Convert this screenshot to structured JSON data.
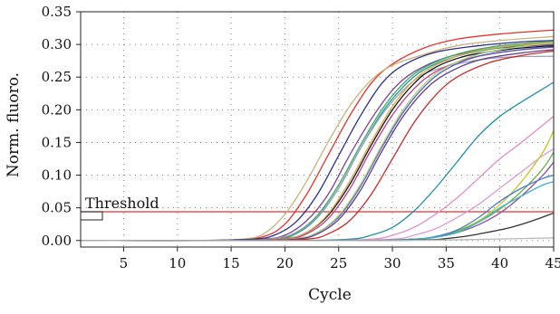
{
  "chart_data": {
    "type": "line",
    "xlabel": "Cycle",
    "ylabel": "Norm. fluoro.",
    "xlim": [
      1,
      45
    ],
    "ylim": [
      -0.01,
      0.35
    ],
    "x_ticks": [
      5,
      10,
      15,
      20,
      25,
      30,
      35,
      40,
      45
    ],
    "x_tick_labels": [
      "5",
      "10",
      "15",
      "20",
      "25",
      "30",
      "35",
      "40",
      "45"
    ],
    "y_ticks": [
      0.0,
      0.05,
      0.1,
      0.15,
      0.2,
      0.25,
      0.3,
      0.35
    ],
    "y_tick_labels": [
      "0.00",
      "0.05",
      "0.10",
      "0.15",
      "0.20",
      "0.25",
      "0.30",
      "0.35"
    ],
    "grid": "dotted",
    "threshold": {
      "label": "Threshold",
      "value": 0.044,
      "color": "#e8322a"
    },
    "series": [
      {
        "color": "#e8322a",
        "values": [
          [
            1,
            0.0
          ],
          [
            10,
            0.0
          ],
          [
            15,
            0.001
          ],
          [
            18,
            0.006
          ],
          [
            20,
            0.025
          ],
          [
            22,
            0.07
          ],
          [
            24,
            0.13
          ],
          [
            26,
            0.19
          ],
          [
            28,
            0.24
          ],
          [
            30,
            0.27
          ],
          [
            33,
            0.295
          ],
          [
            36,
            0.308
          ],
          [
            40,
            0.316
          ],
          [
            45,
            0.322
          ]
        ]
      },
      {
        "color": "#c8b27a",
        "values": [
          [
            1,
            0.0
          ],
          [
            12,
            0.0
          ],
          [
            16,
            0.002
          ],
          [
            18,
            0.01
          ],
          [
            20,
            0.04
          ],
          [
            22,
            0.09
          ],
          [
            24,
            0.15
          ],
          [
            26,
            0.205
          ],
          [
            28,
            0.245
          ],
          [
            30,
            0.268
          ],
          [
            33,
            0.285
          ],
          [
            36,
            0.298
          ],
          [
            40,
            0.306
          ],
          [
            45,
            0.312
          ]
        ]
      },
      {
        "color": "#2b2f8f",
        "values": [
          [
            1,
            0.0
          ],
          [
            12,
            0.0
          ],
          [
            17,
            0.002
          ],
          [
            19,
            0.008
          ],
          [
            21,
            0.028
          ],
          [
            23,
            0.07
          ],
          [
            25,
            0.13
          ],
          [
            27,
            0.19
          ],
          [
            29,
            0.24
          ],
          [
            31,
            0.268
          ],
          [
            34,
            0.288
          ],
          [
            38,
            0.298
          ],
          [
            42,
            0.304
          ],
          [
            45,
            0.306
          ]
        ]
      },
      {
        "color": "#7e3f98",
        "values": [
          [
            1,
            0.0
          ],
          [
            14,
            0.0
          ],
          [
            18,
            0.002
          ],
          [
            20,
            0.008
          ],
          [
            22,
            0.03
          ],
          [
            24,
            0.07
          ],
          [
            26,
            0.13
          ],
          [
            28,
            0.185
          ],
          [
            30,
            0.23
          ],
          [
            32,
            0.258
          ],
          [
            35,
            0.28
          ],
          [
            39,
            0.293
          ],
          [
            45,
            0.3
          ]
        ]
      },
      {
        "color": "#1e9a8a",
        "values": [
          [
            1,
            0.0
          ],
          [
            14,
            0.0
          ],
          [
            19,
            0.002
          ],
          [
            21,
            0.01
          ],
          [
            23,
            0.035
          ],
          [
            25,
            0.08
          ],
          [
            27,
            0.14
          ],
          [
            29,
            0.195
          ],
          [
            31,
            0.235
          ],
          [
            33,
            0.262
          ],
          [
            36,
            0.282
          ],
          [
            40,
            0.295
          ],
          [
            45,
            0.302
          ]
        ]
      },
      {
        "color": "#3aa66a",
        "values": [
          [
            1,
            0.0
          ],
          [
            15,
            0.0
          ],
          [
            19,
            0.003
          ],
          [
            21,
            0.012
          ],
          [
            23,
            0.038
          ],
          [
            25,
            0.085
          ],
          [
            27,
            0.145
          ],
          [
            29,
            0.2
          ],
          [
            31,
            0.24
          ],
          [
            33,
            0.265
          ],
          [
            36,
            0.285
          ],
          [
            40,
            0.298
          ],
          [
            45,
            0.305
          ]
        ]
      },
      {
        "color": "#9aa0b8",
        "values": [
          [
            1,
            0.0
          ],
          [
            15,
            0.0
          ],
          [
            19,
            0.003
          ],
          [
            21,
            0.012
          ],
          [
            23,
            0.036
          ],
          [
            25,
            0.08
          ],
          [
            27,
            0.14
          ],
          [
            29,
            0.192
          ],
          [
            31,
            0.23
          ],
          [
            33,
            0.255
          ],
          [
            36,
            0.27
          ],
          [
            40,
            0.28
          ],
          [
            45,
            0.282
          ]
        ]
      },
      {
        "color": "#111111",
        "values": [
          [
            1,
            0.0
          ],
          [
            15,
            0.0
          ],
          [
            20,
            0.003
          ],
          [
            22,
            0.012
          ],
          [
            24,
            0.038
          ],
          [
            26,
            0.085
          ],
          [
            28,
            0.145
          ],
          [
            30,
            0.2
          ],
          [
            32,
            0.24
          ],
          [
            34,
            0.265
          ],
          [
            37,
            0.283
          ],
          [
            41,
            0.293
          ],
          [
            45,
            0.298
          ]
        ]
      },
      {
        "color": "#d9a84a",
        "values": [
          [
            1,
            0.0
          ],
          [
            15,
            0.0
          ],
          [
            20,
            0.003
          ],
          [
            22,
            0.012
          ],
          [
            24,
            0.04
          ],
          [
            26,
            0.09
          ],
          [
            28,
            0.15
          ],
          [
            30,
            0.205
          ],
          [
            32,
            0.245
          ],
          [
            34,
            0.268
          ],
          [
            37,
            0.287
          ],
          [
            41,
            0.298
          ],
          [
            45,
            0.303
          ]
        ]
      },
      {
        "color": "#c23a8c",
        "values": [
          [
            1,
            0.0
          ],
          [
            15,
            0.0
          ],
          [
            20,
            0.002
          ],
          [
            22,
            0.01
          ],
          [
            24,
            0.033
          ],
          [
            26,
            0.078
          ],
          [
            28,
            0.138
          ],
          [
            30,
            0.192
          ],
          [
            32,
            0.232
          ],
          [
            34,
            0.258
          ],
          [
            37,
            0.278
          ],
          [
            41,
            0.29
          ],
          [
            45,
            0.296
          ]
        ]
      },
      {
        "color": "#4f5fc0",
        "values": [
          [
            1,
            0.0
          ],
          [
            16,
            0.0
          ],
          [
            21,
            0.003
          ],
          [
            23,
            0.012
          ],
          [
            25,
            0.036
          ],
          [
            27,
            0.082
          ],
          [
            29,
            0.142
          ],
          [
            31,
            0.196
          ],
          [
            33,
            0.236
          ],
          [
            35,
            0.262
          ],
          [
            38,
            0.282
          ],
          [
            42,
            0.292
          ],
          [
            45,
            0.296
          ]
        ]
      },
      {
        "color": "#b0d070",
        "values": [
          [
            1,
            0.0
          ],
          [
            16,
            0.0
          ],
          [
            21,
            0.003
          ],
          [
            23,
            0.012
          ],
          [
            25,
            0.038
          ],
          [
            27,
            0.085
          ],
          [
            29,
            0.145
          ],
          [
            31,
            0.2
          ],
          [
            33,
            0.24
          ],
          [
            35,
            0.265
          ],
          [
            38,
            0.285
          ],
          [
            42,
            0.297
          ],
          [
            45,
            0.302
          ]
        ]
      },
      {
        "color": "#5a3a8c",
        "values": [
          [
            1,
            0.0
          ],
          [
            16,
            0.0
          ],
          [
            21,
            0.002
          ],
          [
            23,
            0.01
          ],
          [
            25,
            0.032
          ],
          [
            27,
            0.076
          ],
          [
            29,
            0.136
          ],
          [
            31,
            0.19
          ],
          [
            33,
            0.23
          ],
          [
            35,
            0.255
          ],
          [
            38,
            0.276
          ],
          [
            42,
            0.287
          ],
          [
            45,
            0.292
          ]
        ]
      },
      {
        "color": "#cc2a2a",
        "values": [
          [
            1,
            0.0
          ],
          [
            16,
            0.0
          ],
          [
            22,
            0.002
          ],
          [
            24,
            0.01
          ],
          [
            26,
            0.03
          ],
          [
            28,
            0.07
          ],
          [
            30,
            0.125
          ],
          [
            32,
            0.18
          ],
          [
            34,
            0.222
          ],
          [
            36,
            0.25
          ],
          [
            39,
            0.272
          ],
          [
            42,
            0.283
          ],
          [
            45,
            0.29
          ]
        ]
      },
      {
        "color": "#1d8fb0",
        "values": [
          [
            1,
            0.0
          ],
          [
            20,
            0.0
          ],
          [
            26,
            0.002
          ],
          [
            28,
            0.008
          ],
          [
            30,
            0.02
          ],
          [
            32,
            0.045
          ],
          [
            34,
            0.08
          ],
          [
            36,
            0.12
          ],
          [
            38,
            0.16
          ],
          [
            40,
            0.19
          ],
          [
            42,
            0.212
          ],
          [
            45,
            0.242
          ]
        ]
      },
      {
        "color": "#e58bc5",
        "values": [
          [
            1,
            0.0
          ],
          [
            22,
            0.0
          ],
          [
            28,
            0.002
          ],
          [
            30,
            0.008
          ],
          [
            32,
            0.02
          ],
          [
            34,
            0.04
          ],
          [
            36,
            0.065
          ],
          [
            38,
            0.095
          ],
          [
            40,
            0.125
          ],
          [
            42,
            0.15
          ],
          [
            45,
            0.19
          ]
        ]
      },
      {
        "color": "#e09ad0",
        "values": [
          [
            1,
            0.0
          ],
          [
            24,
            0.0
          ],
          [
            30,
            0.002
          ],
          [
            32,
            0.008
          ],
          [
            34,
            0.018
          ],
          [
            36,
            0.035
          ],
          [
            38,
            0.055
          ],
          [
            40,
            0.08
          ],
          [
            42,
            0.105
          ],
          [
            44,
            0.13
          ],
          [
            45,
            0.14
          ]
        ]
      },
      {
        "color": "#c8c828",
        "values": [
          [
            1,
            0.0
          ],
          [
            26,
            0.0
          ],
          [
            32,
            0.002
          ],
          [
            34,
            0.006
          ],
          [
            36,
            0.015
          ],
          [
            38,
            0.03
          ],
          [
            40,
            0.055
          ],
          [
            42,
            0.09
          ],
          [
            44,
            0.135
          ],
          [
            45,
            0.168
          ]
        ]
      },
      {
        "color": "#6ab04c",
        "values": [
          [
            1,
            0.0
          ],
          [
            26,
            0.0
          ],
          [
            32,
            0.002
          ],
          [
            34,
            0.006
          ],
          [
            36,
            0.014
          ],
          [
            38,
            0.028
          ],
          [
            40,
            0.048
          ],
          [
            42,
            0.075
          ],
          [
            44,
            0.11
          ],
          [
            45,
            0.135
          ]
        ]
      },
      {
        "color": "#8e4ea8",
        "values": [
          [
            1,
            0.0
          ],
          [
            26,
            0.0
          ],
          [
            32,
            0.002
          ],
          [
            34,
            0.005
          ],
          [
            36,
            0.012
          ],
          [
            38,
            0.024
          ],
          [
            40,
            0.042
          ],
          [
            42,
            0.068
          ],
          [
            44,
            0.1
          ],
          [
            45,
            0.12
          ]
        ]
      },
      {
        "color": "#4a7ad0",
        "values": [
          [
            1,
            0.0
          ],
          [
            26,
            0.0
          ],
          [
            32,
            0.002
          ],
          [
            34,
            0.006
          ],
          [
            36,
            0.016
          ],
          [
            38,
            0.035
          ],
          [
            40,
            0.06
          ],
          [
            42,
            0.08
          ],
          [
            44,
            0.095
          ],
          [
            45,
            0.1
          ]
        ]
      },
      {
        "color": "#3cb4c8",
        "values": [
          [
            1,
            0.0
          ],
          [
            26,
            0.0
          ],
          [
            32,
            0.002
          ],
          [
            34,
            0.005
          ],
          [
            36,
            0.012
          ],
          [
            38,
            0.028
          ],
          [
            40,
            0.05
          ],
          [
            42,
            0.068
          ],
          [
            44,
            0.085
          ],
          [
            45,
            0.09
          ]
        ]
      },
      {
        "color": "#333333",
        "values": [
          [
            1,
            0.0
          ],
          [
            26,
            0.0
          ],
          [
            33,
            0.001
          ],
          [
            35,
            0.003
          ],
          [
            37,
            0.007
          ],
          [
            39,
            0.013
          ],
          [
            41,
            0.02
          ],
          [
            43,
            0.03
          ],
          [
            45,
            0.042
          ]
        ]
      },
      {
        "color": "#b8b8b8",
        "values": [
          [
            1,
            0.0
          ],
          [
            30,
            0.0
          ],
          [
            45,
            0.004
          ]
        ]
      }
    ]
  }
}
